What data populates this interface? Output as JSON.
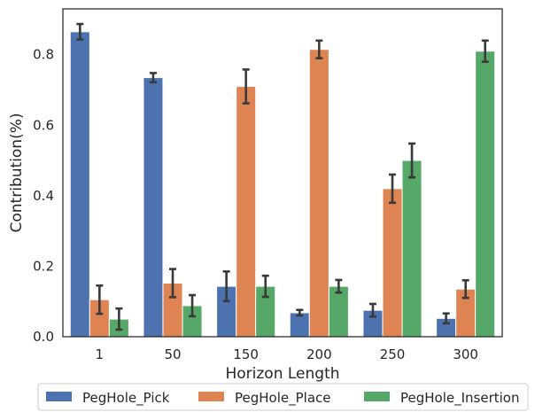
{
  "chart_data": {
    "type": "bar",
    "title": "",
    "xlabel": "Horizon Length",
    "ylabel": "Contribution(%)",
    "categories": [
      "1",
      "50",
      "150",
      "200",
      "250",
      "300"
    ],
    "ylim": [
      0,
      0.93
    ],
    "yticks": [
      "0.0",
      "0.2",
      "0.4",
      "0.6",
      "0.8"
    ],
    "grid": false,
    "legend_position": "bottom",
    "series": [
      {
        "name": "PegHole_Pick",
        "color": "#4c72b0",
        "values": [
          0.865,
          0.735,
          0.143,
          0.068,
          0.075,
          0.052
        ],
        "error": [
          0.022,
          0.013,
          0.042,
          0.008,
          0.018,
          0.014
        ]
      },
      {
        "name": "PegHole_Place",
        "color": "#dd8452",
        "values": [
          0.105,
          0.152,
          0.71,
          0.815,
          0.42,
          0.135
        ],
        "error": [
          0.04,
          0.04,
          0.048,
          0.025,
          0.04,
          0.025
        ]
      },
      {
        "name": "PegHole_Insertion",
        "color": "#55a868",
        "values": [
          0.05,
          0.088,
          0.143,
          0.143,
          0.5,
          0.81
        ],
        "error": [
          0.03,
          0.03,
          0.03,
          0.018,
          0.048,
          0.03
        ]
      }
    ]
  }
}
